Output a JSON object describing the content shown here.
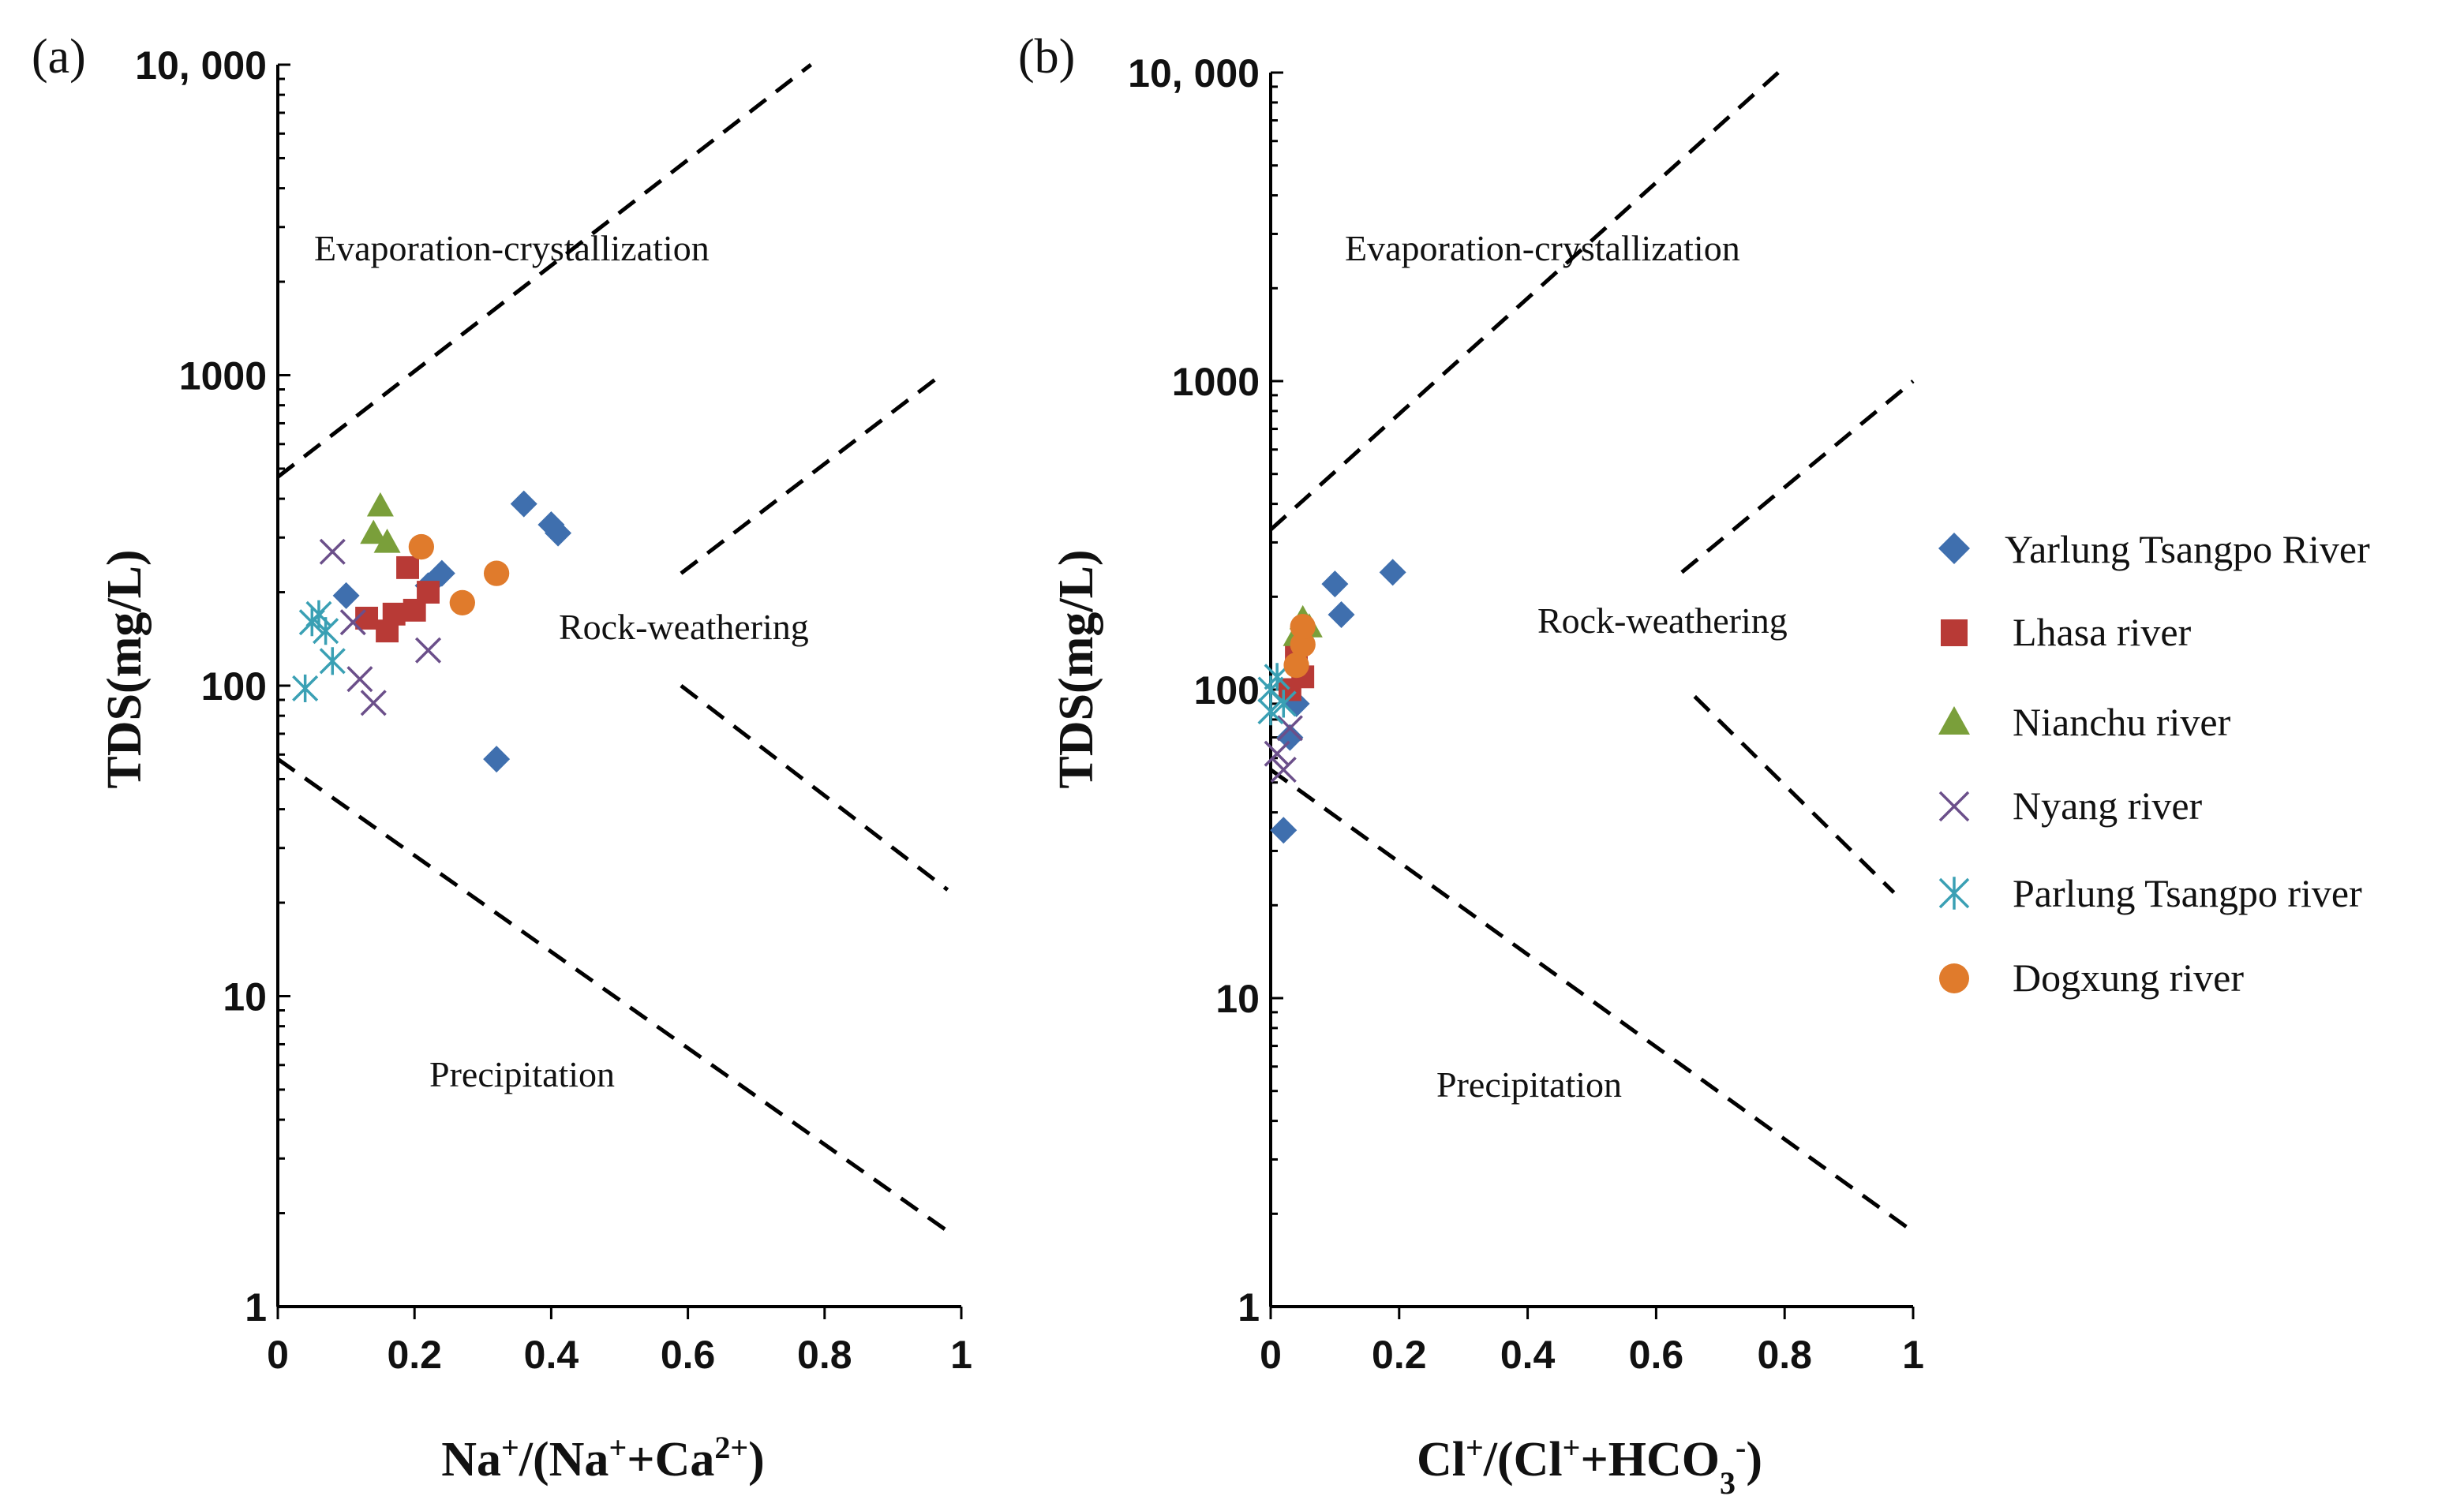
{
  "chart_data": [
    {
      "type": "scatter",
      "panel_label": "(a)",
      "xlabel": {
        "base": "Na",
        "sup1": "+",
        "mid": "/(Na",
        "sup2": "+",
        "mid2": "+Ca",
        "sup3": "2+",
        "end": ")"
      },
      "ylabel": "TDS(mg/L)",
      "xlim": [
        0,
        1
      ],
      "ylim": [
        1,
        10000
      ],
      "y_scale": "log",
      "x_ticks": [
        "0",
        "0.2",
        "0.4",
        "0.6",
        "0.8",
        "1"
      ],
      "x_tick_values": [
        0,
        0.2,
        0.4,
        0.6,
        0.8,
        1
      ],
      "y_ticks": [
        "1",
        "10",
        "100",
        "1000",
        "10, 000"
      ],
      "y_tick_values": [
        1,
        10,
        100,
        1000,
        10000
      ],
      "regions": {
        "evaporation": "Evaporation-crystallization",
        "rock": "Rock-weathering",
        "precipitation": "Precipitation"
      },
      "boundary_lines": [
        {
          "name": "upper-left",
          "points": [
            [
              0.0,
              470
            ],
            [
              0.78,
              10000
            ]
          ]
        },
        {
          "name": "upper-right",
          "points": [
            [
              0.59,
              230
            ],
            [
              0.97,
              1000
            ]
          ]
        },
        {
          "name": "lower-right",
          "points": [
            [
              0.59,
              100
            ],
            [
              0.98,
              22
            ]
          ]
        },
        {
          "name": "lower-left",
          "points": [
            [
              0.0,
              58
            ],
            [
              0.98,
              1.75
            ]
          ]
        }
      ],
      "series": [
        {
          "name": "Yarlung Tsangpo River",
          "values": [
            [
              0.1,
              195
            ],
            [
              0.22,
              210
            ],
            [
              0.24,
              230
            ],
            [
              0.36,
              385
            ],
            [
              0.4,
              330
            ],
            [
              0.41,
              310
            ],
            [
              0.32,
              58
            ]
          ]
        },
        {
          "name": "Lhasa river",
          "values": [
            [
              0.13,
              165
            ],
            [
              0.16,
              150
            ],
            [
              0.2,
              175
            ],
            [
              0.19,
              240
            ],
            [
              0.22,
              200
            ],
            [
              0.17,
              170
            ]
          ]
        },
        {
          "name": "Nianchu river",
          "values": [
            [
              0.14,
              310
            ],
            [
              0.15,
              380
            ],
            [
              0.16,
              290
            ]
          ]
        },
        {
          "name": "Nyang river",
          "values": [
            [
              0.08,
              270
            ],
            [
              0.12,
              105
            ],
            [
              0.14,
              88
            ],
            [
              0.22,
              130
            ],
            [
              0.11,
              160
            ]
          ]
        },
        {
          "name": "Parlung Tsangpo river",
          "values": [
            [
              0.04,
              98
            ],
            [
              0.05,
              160
            ],
            [
              0.06,
              170
            ],
            [
              0.07,
              150
            ],
            [
              0.08,
              120
            ]
          ]
        },
        {
          "name": "Dogxung river",
          "values": [
            [
              0.21,
              280
            ],
            [
              0.27,
              185
            ],
            [
              0.32,
              230
            ]
          ]
        }
      ]
    },
    {
      "type": "scatter",
      "panel_label": "(b)",
      "xlabel": {
        "base": "Cl",
        "sup1": "+",
        "mid": "/(Cl",
        "sup2": "+",
        "mid2": "+HCO",
        "sub": "3",
        "sup3": "-",
        "end": ")"
      },
      "ylabel": "TDS(mg/L)",
      "xlim": [
        0,
        1
      ],
      "ylim": [
        1,
        10000
      ],
      "y_scale": "log",
      "x_ticks": [
        "0",
        "0.2",
        "0.4",
        "0.6",
        "0.8",
        "1"
      ],
      "x_tick_values": [
        0,
        0.2,
        0.4,
        0.6,
        0.8,
        1
      ],
      "y_ticks": [
        "1",
        "10",
        "100",
        "1000",
        "10, 000"
      ],
      "y_tick_values": [
        1,
        10,
        100,
        1000,
        10000
      ],
      "regions": {
        "evaporation": "Evaporation-crystallization",
        "rock": "Rock-weathering",
        "precipitation": "Precipitation"
      },
      "boundary_lines": [
        {
          "name": "upper-left",
          "points": [
            [
              0.0,
              330
            ],
            [
              0.79,
              10000
            ]
          ]
        },
        {
          "name": "upper-right",
          "points": [
            [
              0.64,
              240
            ],
            [
              1.0,
              1000
            ]
          ]
        },
        {
          "name": "lower-right",
          "points": [
            [
              0.66,
              95
            ],
            [
              0.97,
              22
            ]
          ]
        },
        {
          "name": "lower-left",
          "points": [
            [
              0.0,
              55
            ],
            [
              1.0,
              1.75
            ]
          ]
        }
      ],
      "series": [
        {
          "name": "Yarlung Tsangpo River",
          "values": [
            [
              0.02,
              35
            ],
            [
              0.03,
              70
            ],
            [
              0.04,
              90
            ],
            [
              0.1,
              220
            ],
            [
              0.11,
              175
            ],
            [
              0.19,
              240
            ]
          ]
        },
        {
          "name": "Lhasa river",
          "values": [
            [
              0.03,
              100
            ],
            [
              0.05,
              110
            ],
            [
              0.04,
              130
            ]
          ]
        },
        {
          "name": "Nianchu river",
          "values": [
            [
              0.04,
              150
            ],
            [
              0.05,
              170
            ],
            [
              0.06,
              160
            ]
          ]
        },
        {
          "name": "Nyang river",
          "values": [
            [
              0.01,
              62
            ],
            [
              0.02,
              55
            ],
            [
              0.03,
              75
            ]
          ]
        },
        {
          "name": "Parlung Tsangpo river",
          "values": [
            [
              0.0,
              85
            ],
            [
              0.0,
              100
            ],
            [
              0.01,
              110
            ],
            [
              0.02,
              90
            ]
          ]
        },
        {
          "name": "Dogxung river",
          "values": [
            [
              0.04,
              120
            ],
            [
              0.05,
              140
            ],
            [
              0.05,
              160
            ]
          ]
        }
      ]
    }
  ],
  "legend": {
    "placement": "right",
    "items": [
      {
        "label": "Yarlung Tsangpo River",
        "marker": "diamond",
        "color": "#3f6fae"
      },
      {
        "label": "Lhasa river",
        "marker": "square",
        "color": "#b83a36"
      },
      {
        "label": "Nianchu river",
        "marker": "triangle",
        "color": "#7a9f3a"
      },
      {
        "label": "Nyang river",
        "marker": "x",
        "color": "#6b4f8a"
      },
      {
        "label": "Parlung Tsangpo river",
        "marker": "star",
        "color": "#3aa0b4"
      },
      {
        "label": "Dogxung river",
        "marker": "circle",
        "color": "#e07b2c"
      }
    ]
  }
}
